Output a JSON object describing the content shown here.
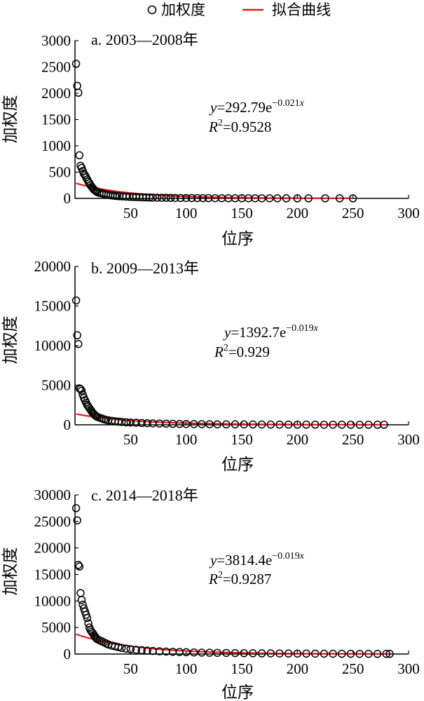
{
  "legend": {
    "points_label": "加权度",
    "fit_label": "拟合曲线",
    "fit_color": "#e8191d",
    "point_color": "#000000"
  },
  "chart_data": [
    {
      "type": "scatter",
      "title": "a. 2003—2008年",
      "xlabel": "位序",
      "ylabel": "加权度",
      "xlim": [
        0,
        300
      ],
      "ylim": [
        0,
        3000
      ],
      "xticks": [
        50,
        100,
        150,
        200,
        250,
        300
      ],
      "yticks": [
        0,
        500,
        1000,
        1500,
        2000,
        2500,
        3000
      ],
      "fit": {
        "a": 292.79,
        "b": -0.021,
        "x_range": [
          1,
          250
        ]
      },
      "equation": {
        "prefix": "y",
        "mid": "=292.79e",
        "exp": "−0.021",
        "expvar": "x"
      },
      "r2": {
        "lhs": "R",
        "sup": "2",
        "rhs": "=0.9528"
      },
      "points": [
        [
          1,
          2560
        ],
        [
          2,
          2140
        ],
        [
          3,
          2010
        ],
        [
          4,
          820
        ],
        [
          5,
          620
        ],
        [
          6,
          580
        ],
        [
          7,
          520
        ],
        [
          8,
          470
        ],
        [
          9,
          440
        ],
        [
          10,
          400
        ],
        [
          11,
          360
        ],
        [
          12,
          320
        ],
        [
          13,
          290
        ],
        [
          14,
          250
        ],
        [
          15,
          220
        ],
        [
          16,
          195
        ],
        [
          17,
          170
        ],
        [
          18,
          150
        ],
        [
          19,
          135
        ],
        [
          20,
          120
        ],
        [
          22,
          105
        ],
        [
          24,
          95
        ],
        [
          26,
          85
        ],
        [
          28,
          75
        ],
        [
          30,
          68
        ],
        [
          32,
          60
        ],
        [
          34,
          55
        ],
        [
          36,
          50
        ],
        [
          38,
          45
        ],
        [
          40,
          42
        ],
        [
          43,
          38
        ],
        [
          46,
          34
        ],
        [
          49,
          30
        ],
        [
          52,
          27
        ],
        [
          55,
          25
        ],
        [
          58,
          22
        ],
        [
          61,
          20
        ],
        [
          64,
          18
        ],
        [
          67,
          16
        ],
        [
          70,
          15
        ],
        [
          74,
          13
        ],
        [
          78,
          12
        ],
        [
          82,
          11
        ],
        [
          86,
          10
        ],
        [
          90,
          9
        ],
        [
          95,
          8
        ],
        [
          100,
          7
        ],
        [
          105,
          6
        ],
        [
          110,
          6
        ],
        [
          115,
          5
        ],
        [
          120,
          5
        ],
        [
          126,
          4
        ],
        [
          132,
          4
        ],
        [
          138,
          3
        ],
        [
          144,
          3
        ],
        [
          150,
          3
        ],
        [
          156,
          2
        ],
        [
          162,
          2
        ],
        [
          168,
          2
        ],
        [
          175,
          2
        ],
        [
          182,
          2
        ],
        [
          190,
          1
        ],
        [
          200,
          1
        ],
        [
          210,
          1
        ],
        [
          225,
          1
        ],
        [
          238,
          1
        ],
        [
          250,
          1
        ]
      ]
    },
    {
      "type": "scatter",
      "title": "b. 2009—2013年",
      "xlabel": "位序",
      "ylabel": "加权度",
      "xlim": [
        0,
        300
      ],
      "ylim": [
        0,
        20000
      ],
      "xticks": [
        50,
        100,
        150,
        200,
        250,
        300
      ],
      "yticks": [
        0,
        5000,
        10000,
        15000,
        20000
      ],
      "fit": {
        "a": 1392.7,
        "b": -0.019,
        "x_range": [
          1,
          280
        ]
      },
      "equation": {
        "prefix": "y",
        "mid": "=1392.7e",
        "exp": "−0.019",
        "expvar": "x"
      },
      "r2": {
        "lhs": "R",
        "sup": "2",
        "rhs": "=0.929"
      },
      "points": [
        [
          1,
          15700
        ],
        [
          2,
          11300
        ],
        [
          3,
          10200
        ],
        [
          4,
          4600
        ],
        [
          5,
          4500
        ],
        [
          6,
          4300
        ],
        [
          7,
          3800
        ],
        [
          8,
          3400
        ],
        [
          9,
          3100
        ],
        [
          10,
          2800
        ],
        [
          11,
          2500
        ],
        [
          12,
          2300
        ],
        [
          13,
          2100
        ],
        [
          14,
          1900
        ],
        [
          15,
          1700
        ],
        [
          16,
          1500
        ],
        [
          17,
          1350
        ],
        [
          18,
          1200
        ],
        [
          19,
          1100
        ],
        [
          20,
          1000
        ],
        [
          22,
          900
        ],
        [
          24,
          800
        ],
        [
          26,
          700
        ],
        [
          28,
          620
        ],
        [
          30,
          560
        ],
        [
          33,
          500
        ],
        [
          36,
          450
        ],
        [
          39,
          400
        ],
        [
          42,
          360
        ],
        [
          46,
          320
        ],
        [
          50,
          290
        ],
        [
          55,
          260
        ],
        [
          60,
          230
        ],
        [
          65,
          200
        ],
        [
          70,
          180
        ],
        [
          76,
          160
        ],
        [
          82,
          140
        ],
        [
          88,
          120
        ],
        [
          94,
          110
        ],
        [
          100,
          100
        ],
        [
          107,
          90
        ],
        [
          114,
          80
        ],
        [
          121,
          70
        ],
        [
          128,
          60
        ],
        [
          136,
          55
        ],
        [
          144,
          50
        ],
        [
          152,
          45
        ],
        [
          160,
          40
        ],
        [
          168,
          35
        ],
        [
          176,
          30
        ],
        [
          184,
          27
        ],
        [
          192,
          25
        ],
        [
          200,
          22
        ],
        [
          208,
          20
        ],
        [
          216,
          18
        ],
        [
          224,
          16
        ],
        [
          232,
          14
        ],
        [
          240,
          12
        ],
        [
          248,
          11
        ],
        [
          256,
          10
        ],
        [
          264,
          9
        ],
        [
          272,
          8
        ],
        [
          278,
          7
        ]
      ]
    },
    {
      "type": "scatter",
      "title": "c. 2014—2018年",
      "xlabel": "位序",
      "ylabel": "加权度",
      "xlim": [
        0,
        300
      ],
      "ylim": [
        0,
        30000
      ],
      "xticks": [
        50,
        100,
        150,
        200,
        250,
        300
      ],
      "yticks": [
        0,
        5000,
        10000,
        15000,
        20000,
        25000,
        30000
      ],
      "fit": {
        "a": 3814.4,
        "b": -0.019,
        "x_range": [
          1,
          283
        ]
      },
      "equation": {
        "prefix": "y",
        "mid": "=3814.4e",
        "exp": "−0.019",
        "expvar": "x"
      },
      "r2": {
        "lhs": "R",
        "sup": "2",
        "rhs": "=0.9287"
      },
      "points": [
        [
          1,
          27500
        ],
        [
          2,
          25200
        ],
        [
          3,
          16800
        ],
        [
          4,
          16500
        ],
        [
          5,
          11500
        ],
        [
          6,
          10200
        ],
        [
          7,
          9300
        ],
        [
          8,
          8600
        ],
        [
          9,
          8000
        ],
        [
          10,
          7400
        ],
        [
          11,
          6800
        ],
        [
          12,
          5800
        ],
        [
          13,
          5000
        ],
        [
          14,
          4500
        ],
        [
          15,
          4200
        ],
        [
          16,
          3900
        ],
        [
          17,
          3600
        ],
        [
          18,
          3300
        ],
        [
          19,
          3000
        ],
        [
          20,
          2800
        ],
        [
          22,
          2600
        ],
        [
          24,
          2400
        ],
        [
          26,
          2200
        ],
        [
          28,
          2000
        ],
        [
          30,
          1800
        ],
        [
          33,
          1600
        ],
        [
          36,
          1450
        ],
        [
          39,
          1300
        ],
        [
          42,
          1150
        ],
        [
          46,
          1000
        ],
        [
          50,
          900
        ],
        [
          55,
          800
        ],
        [
          60,
          720
        ],
        [
          65,
          650
        ],
        [
          70,
          580
        ],
        [
          76,
          520
        ],
        [
          82,
          470
        ],
        [
          88,
          420
        ],
        [
          94,
          380
        ],
        [
          100,
          340
        ],
        [
          107,
          300
        ],
        [
          114,
          270
        ],
        [
          121,
          240
        ],
        [
          128,
          220
        ],
        [
          136,
          200
        ],
        [
          144,
          180
        ],
        [
          152,
          160
        ],
        [
          160,
          145
        ],
        [
          168,
          130
        ],
        [
          176,
          118
        ],
        [
          184,
          106
        ],
        [
          192,
          95
        ],
        [
          200,
          85
        ],
        [
          208,
          76
        ],
        [
          216,
          68
        ],
        [
          224,
          61
        ],
        [
          232,
          55
        ],
        [
          240,
          50
        ],
        [
          248,
          45
        ],
        [
          256,
          40
        ],
        [
          264,
          36
        ],
        [
          272,
          32
        ],
        [
          280,
          28
        ],
        [
          283,
          26
        ]
      ]
    }
  ]
}
